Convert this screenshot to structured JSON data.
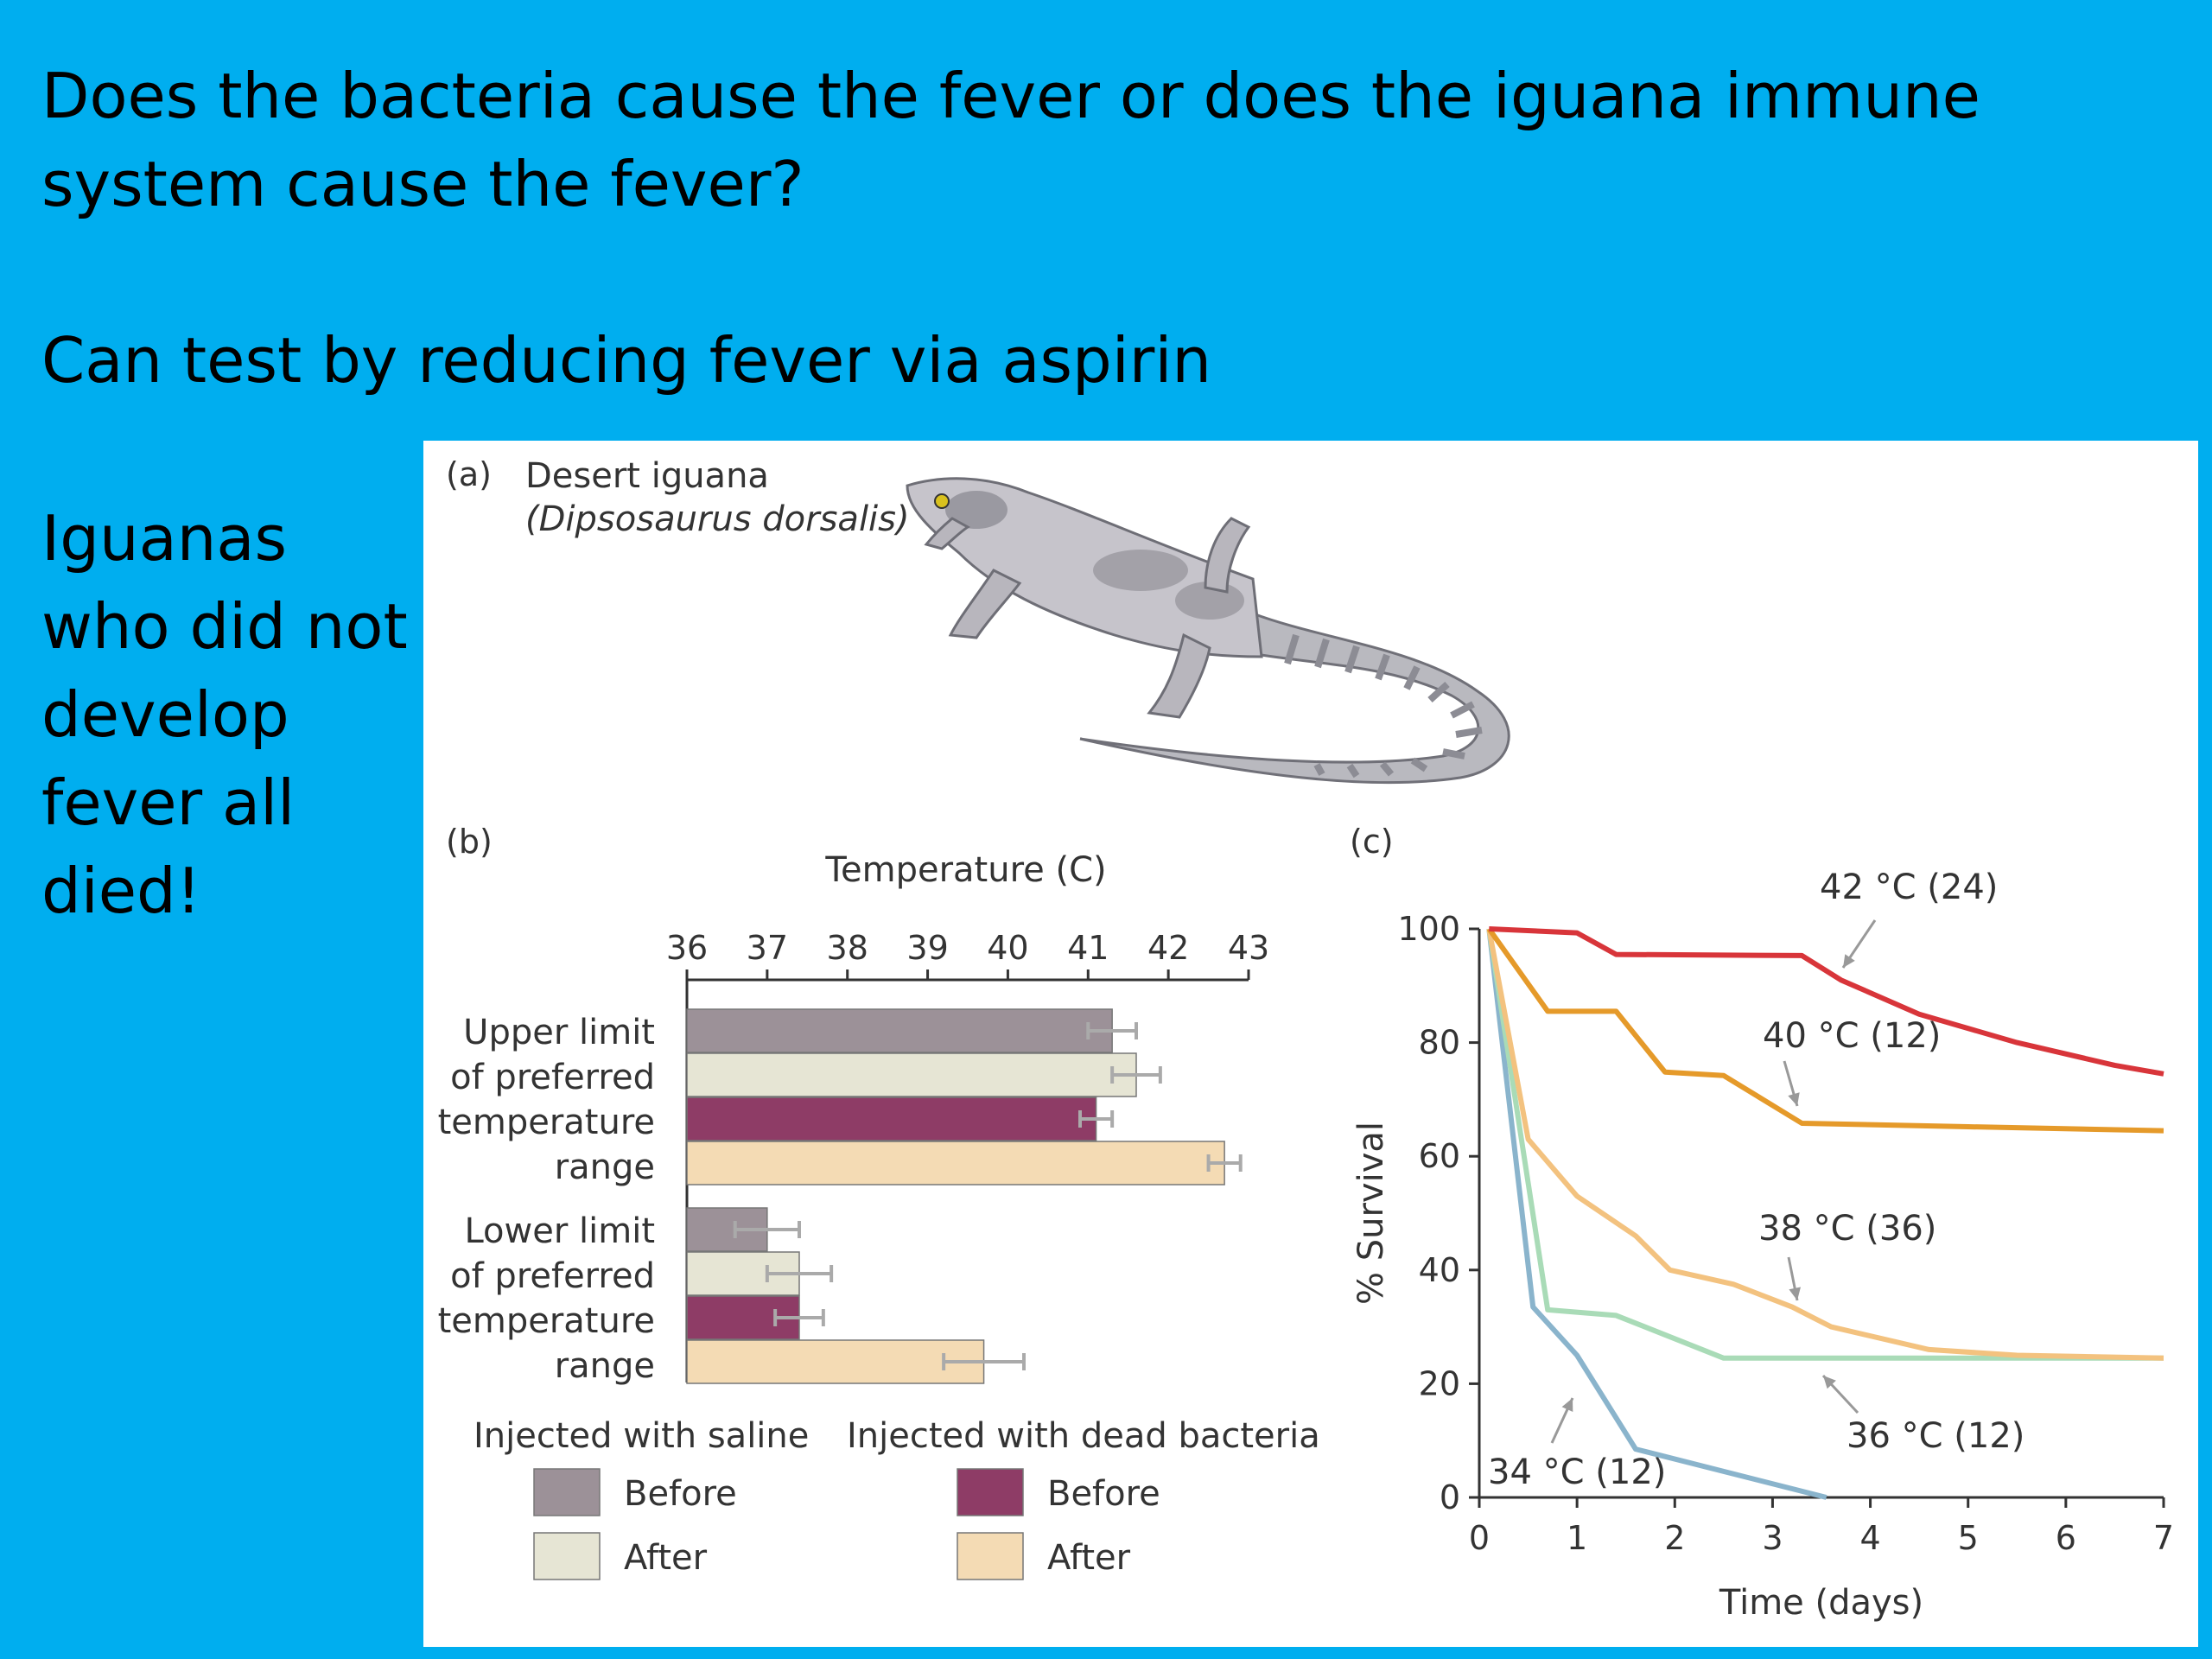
{
  "slide": {
    "title": "Does the bacteria cause the fever or does the iguana immune system cause the fever?",
    "subtitle": "Can test by reducing fever via aspirin",
    "note": "Iguanas who did not develop fever all died!"
  },
  "colors": {
    "background": "#00aeef",
    "saline_before": "#9c9198",
    "saline_after": "#e6e5d4",
    "bacteria_before": "#8e3c66",
    "bacteria_after": "#f4dbb4",
    "c42": "#d8353a",
    "c40": "#e59a2a",
    "c38": "#f3c27f",
    "c36": "#a9dbb7",
    "c34": "#8ab4cc"
  },
  "panel_a": {
    "label": "(a)",
    "common_name": "Desert iguana",
    "scientific_name": "(Dipsosaurus dorsalis)",
    "illustration": "desert-iguana-drawing"
  },
  "chart_data": [
    {
      "type": "bar",
      "panel_label": "(b)",
      "orientation": "horizontal",
      "xlabel": "Temperature (C)",
      "xlim": [
        36,
        43
      ],
      "xticks": [
        "36",
        "37",
        "38",
        "39",
        "40",
        "41",
        "42",
        "43"
      ],
      "groups": [
        {
          "label": [
            "Upper limit",
            "of preferred",
            "temperature",
            "range"
          ],
          "key": "upper"
        },
        {
          "label": [
            "Lower limit",
            "of preferred",
            "temperature",
            "range"
          ],
          "key": "lower"
        }
      ],
      "series": [
        {
          "name": "Before",
          "legend_group": "Injected with saline",
          "color_key": "saline_before",
          "values": [
            41.3,
            37.0
          ],
          "errors": [
            0.3,
            0.4
          ]
        },
        {
          "name": "After",
          "legend_group": "Injected with saline",
          "color_key": "saline_after",
          "values": [
            41.6,
            37.4
          ],
          "errors": [
            0.3,
            0.4
          ]
        },
        {
          "name": "Before",
          "legend_group": "Injected with dead bacteria",
          "color_key": "bacteria_before",
          "values": [
            41.1,
            37.4
          ],
          "errors": [
            0.2,
            0.3
          ]
        },
        {
          "name": "After",
          "legend_group": "Injected with dead bacteria",
          "color_key": "bacteria_after",
          "values": [
            42.7,
            39.7
          ],
          "errors": [
            0.2,
            0.5
          ]
        }
      ],
      "legend": {
        "groups": [
          "Injected with saline",
          "Injected with dead bacteria"
        ],
        "placement": "bottom"
      }
    },
    {
      "type": "line",
      "panel_label": "(c)",
      "xlabel": "Time (days)",
      "ylabel": "% Survival",
      "xlim": [
        0,
        7
      ],
      "ylim": [
        0,
        100
      ],
      "xticks": [
        "0",
        "1",
        "2",
        "3",
        "4",
        "5",
        "6",
        "7"
      ],
      "yticks": [
        "0",
        "20",
        "40",
        "60",
        "80",
        "100"
      ],
      "series": [
        {
          "name": "42 °C (24)",
          "color_key": "c42",
          "points": [
            [
              0.1,
              100
            ],
            [
              1,
              99.3
            ],
            [
              1.4,
              95.5
            ],
            [
              3.3,
              95.3
            ],
            [
              3.7,
              91
            ],
            [
              4.5,
              85
            ],
            [
              5.5,
              80
            ],
            [
              6.5,
              76
            ],
            [
              7,
              74.5
            ]
          ]
        },
        {
          "name": "40 °C (12)",
          "color_key": "c40",
          "points": [
            [
              0.1,
              100
            ],
            [
              0.7,
              85.5
            ],
            [
              1.4,
              85.5
            ],
            [
              1.9,
              74.8
            ],
            [
              2.5,
              74.2
            ],
            [
              3.3,
              65.8
            ],
            [
              5,
              65.2
            ],
            [
              7,
              64.5
            ]
          ]
        },
        {
          "name": "38 °C (36)",
          "color_key": "c38",
          "points": [
            [
              0.1,
              100
            ],
            [
              0.5,
              63
            ],
            [
              1,
              53
            ],
            [
              1.6,
              46
            ],
            [
              1.95,
              40
            ],
            [
              2.6,
              37.5
            ],
            [
              3.2,
              33.5
            ],
            [
              3.6,
              30
            ],
            [
              4.6,
              26
            ],
            [
              5.5,
              25
            ],
            [
              7,
              24.5
            ]
          ]
        },
        {
          "name": "36 °C (12)",
          "color_key": "c36",
          "points": [
            [
              0.1,
              100
            ],
            [
              0.7,
              33
            ],
            [
              1.4,
              32
            ],
            [
              2.5,
              24.5
            ],
            [
              7,
              24.5
            ]
          ]
        },
        {
          "name": "34 °C (12)",
          "color_key": "c34",
          "points": [
            [
              0.1,
              100
            ],
            [
              0.55,
              33.5
            ],
            [
              1,
              25
            ],
            [
              1.6,
              8.5
            ],
            [
              3.55,
              0
            ]
          ]
        }
      ],
      "annotations": [
        "42 °C (24)",
        "40 °C (12)",
        "38 °C (36)",
        "36 °C (12)",
        "34 °C (12)"
      ]
    }
  ]
}
